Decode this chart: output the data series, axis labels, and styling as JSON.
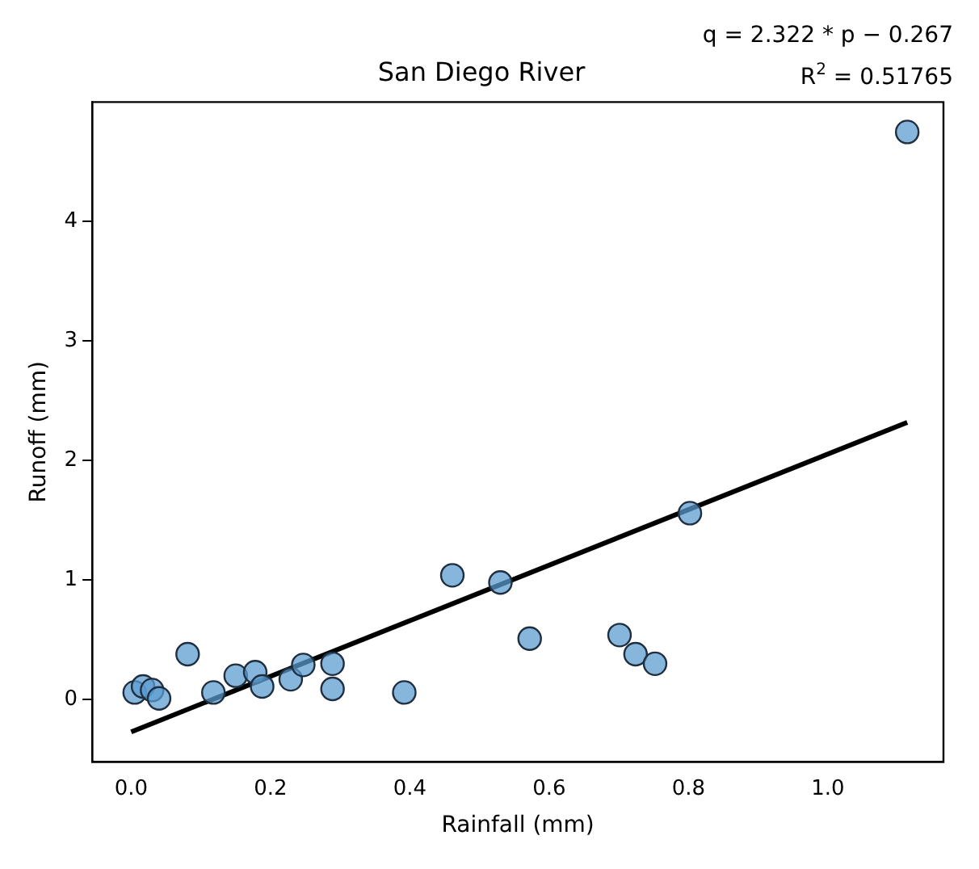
{
  "chart_data": {
    "type": "scatter",
    "title": "San Diego River",
    "xlabel": "Rainfall (mm)",
    "ylabel": "Runoff (mm)",
    "annotations": [
      "q = 2.322 * p − 0.267",
      "R$^{2}$ = 0.51765"
    ],
    "xlim": [
      -0.056,
      1.166
    ],
    "xticks": [
      {
        "value": 0,
        "label": "0.0"
      },
      {
        "value": 0.2,
        "label": "0.2"
      },
      {
        "value": 0.4,
        "label": "0.4"
      },
      {
        "value": 0.6,
        "label": "0.6"
      },
      {
        "value": 0.8,
        "label": "0.8"
      },
      {
        "value": 1,
        "label": "1.0"
      }
    ],
    "ylim": [
      -0.52,
      5.0
    ],
    "yticks": [
      0,
      1,
      2,
      3,
      4
    ],
    "grid": false,
    "legend": false,
    "marker": "circle",
    "series": [
      {
        "type": "scatter",
        "color": "#5b9bd0",
        "x": [
          0.005,
          0.017,
          0.03,
          0.04,
          0.081,
          0.118,
          0.15,
          0.178,
          0.188,
          0.229,
          0.247,
          0.289,
          0.289,
          0.392,
          0.461,
          0.53,
          0.572,
          0.701,
          0.724,
          0.752,
          0.802,
          1.114
        ],
        "values": [
          0.06,
          0.11,
          0.08,
          0.01,
          0.38,
          0.06,
          0.2,
          0.23,
          0.11,
          0.17,
          0.29,
          0.3,
          0.09,
          0.06,
          1.04,
          0.98,
          0.51,
          0.54,
          0.38,
          0.3,
          1.56,
          4.75
        ]
      },
      {
        "type": "line",
        "color": "#000000",
        "line_style": "solid",
        "marker": "none",
        "x": [
          0,
          1.114
        ],
        "values": [
          -0.27,
          2.32
        ]
      }
    ]
  }
}
